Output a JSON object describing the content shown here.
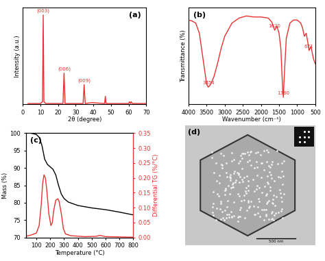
{
  "chart_data": [
    {
      "type": "line",
      "label": "(a)",
      "x_label": "2θ (degree)",
      "y_label": "Intensity (a.u.)",
      "x": [
        3,
        10,
        11.2,
        11.6,
        12.0,
        13,
        22.8,
        23.4,
        24.0,
        34.2,
        34.8,
        35.4,
        39,
        46.4,
        46.8,
        47.2,
        60,
        60.5,
        61,
        61.5,
        62,
        70
      ],
      "values": [
        1,
        1,
        3,
        100,
        3,
        1,
        1,
        35,
        1,
        1,
        22,
        1,
        2,
        1,
        9,
        1,
        1,
        3,
        1,
        3,
        1,
        1
      ],
      "color": "#e8312f",
      "xlim": [
        0,
        70
      ],
      "xticks": [
        0,
        10,
        20,
        30,
        40,
        50,
        60,
        70
      ],
      "ylim": [
        0,
        108
      ],
      "yticks": [],
      "tick_labels": "x",
      "annotations": [
        {
          "text": "(003)",
          "x": 11.6,
          "y": 100
        },
        {
          "text": "(006)",
          "x": 23.4,
          "y": 35
        },
        {
          "text": "(009)",
          "x": 34.8,
          "y": 22
        }
      ]
    },
    {
      "type": "line",
      "label": "(b)",
      "x_label": "Wavenumber (cm⁻¹)",
      "y_label": "Transmittance (%)",
      "x": [
        4000,
        3900,
        3800,
        3700,
        3600,
        3500,
        3454,
        3400,
        3300,
        3200,
        3100,
        3000,
        2800,
        2600,
        2400,
        2200,
        2000,
        1800,
        1700,
        1620,
        1560,
        1500,
        1450,
        1400,
        1380,
        1360,
        1300,
        1200,
        1100,
        1000,
        900,
        850,
        800,
        750,
        700,
        671,
        620,
        550,
        500
      ],
      "values": [
        88,
        87,
        85,
        75,
        50,
        25,
        22,
        24,
        32,
        45,
        60,
        72,
        85,
        90,
        92,
        91,
        91,
        90,
        86,
        78,
        82,
        75,
        60,
        20,
        12,
        30,
        70,
        85,
        88,
        88,
        85,
        80,
        72,
        75,
        65,
        58,
        62,
        50,
        45
      ],
      "color": "#e8312f",
      "xlim": [
        4000,
        500
      ],
      "xticks": [
        4000,
        3500,
        3000,
        2500,
        2000,
        1500,
        1000,
        500
      ],
      "ylim": [
        5,
        100
      ],
      "yticks": [],
      "tick_labels": "x",
      "annotations": [
        {
          "text": "3454",
          "x": 3454,
          "y": 22
        },
        {
          "text": "1620",
          "x": 1620,
          "y": 78
        },
        {
          "text": "1380",
          "x": 1380,
          "y": 12
        },
        {
          "text": "671",
          "x": 671,
          "y": 58
        }
      ]
    },
    {
      "type": "line",
      "label": "(c)",
      "x_label": "Temperature (°C)",
      "y_label": "Mass (%)",
      "y2_label": "Differential TG (%/°C)",
      "xlim": [
        25,
        800
      ],
      "xticks": [
        100,
        200,
        300,
        400,
        500,
        600,
        700,
        800
      ],
      "ylim": [
        70,
        100
      ],
      "yticks": [
        70,
        75,
        80,
        85,
        90,
        95,
        100
      ],
      "y2lim": [
        0,
        0.35
      ],
      "y2ticks": [
        {
          "value": 0,
          "label": "0.00"
        },
        {
          "value": 0.05,
          "label": "0.05"
        },
        {
          "value": 0.1,
          "label": "0.10"
        },
        {
          "value": 0.15,
          "label": "0.15"
        },
        {
          "value": 0.2,
          "label": "0.20"
        },
        {
          "value": 0.25,
          "label": "0.25"
        },
        {
          "value": 0.3,
          "label": "0.30"
        },
        {
          "value": 0.35,
          "label": "0.35"
        }
      ],
      "series": [
        {
          "name": "Mass",
          "color": "#000000",
          "x": [
            30,
            60,
            100,
            120,
            140,
            150,
            160,
            180,
            200,
            220,
            240,
            260,
            280,
            300,
            330,
            400,
            500,
            600,
            700,
            800
          ],
          "values": [
            100,
            100,
            99.6,
            98.8,
            96.5,
            94.5,
            92.5,
            91,
            90.3,
            89.6,
            88,
            85,
            82.5,
            81.2,
            80.2,
            79.2,
            78.5,
            78,
            77.3,
            76.5
          ]
        },
        {
          "name": "Differential TG",
          "axis": "y2",
          "color": "#e8312f",
          "x": [
            30,
            60,
            100,
            120,
            135,
            145,
            155,
            165,
            175,
            190,
            205,
            215,
            225,
            240,
            255,
            265,
            280,
            295,
            310,
            350,
            450,
            530,
            560,
            600,
            700,
            800
          ],
          "values": [
            0.005,
            0.008,
            0.015,
            0.04,
            0.11,
            0.18,
            0.21,
            0.2,
            0.16,
            0.08,
            0.04,
            0.05,
            0.09,
            0.125,
            0.13,
            0.12,
            0.08,
            0.03,
            0.012,
            0.006,
            0.003,
            0.004,
            0.007,
            0.003,
            0.002,
            0.001
          ]
        }
      ]
    },
    {
      "type": "image",
      "label": "(d)",
      "scale_bar": "500 nm"
    }
  ]
}
